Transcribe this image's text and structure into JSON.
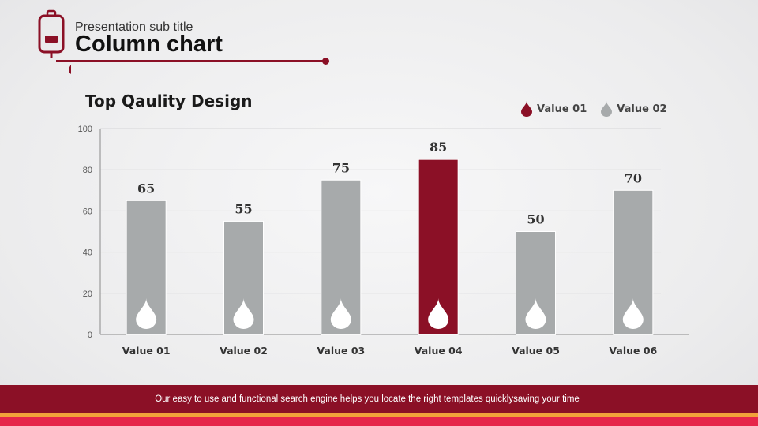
{
  "header": {
    "subtitle": "Presentation sub title",
    "title": "Column chart"
  },
  "colors": {
    "accent": "#8b1026",
    "bar_gray": "#a7aaab",
    "footer_orange": "#f2a23a",
    "footer_red": "#e6264a"
  },
  "chart_data": {
    "type": "bar",
    "title": "Top Qaulity Design",
    "categories": [
      "Value 01",
      "Value 02",
      "Value 03",
      "Value 04",
      "Value 05",
      "Value 06"
    ],
    "values": [
      65,
      55,
      75,
      85,
      50,
      70
    ],
    "highlight_index": 3,
    "ylim": [
      0,
      100
    ],
    "yticks": [
      0,
      20,
      40,
      60,
      80,
      100
    ],
    "xlabel": "",
    "ylabel": "",
    "grid": true,
    "legend": {
      "position": "top-right",
      "entries": [
        {
          "label": "Value 01",
          "color": "#8b1026"
        },
        {
          "label": "Value 02",
          "color": "#a7aaab"
        }
      ]
    }
  },
  "footer": {
    "text": "Our easy to use and functional search engine helps you locate the right templates quicklysaving your time"
  }
}
